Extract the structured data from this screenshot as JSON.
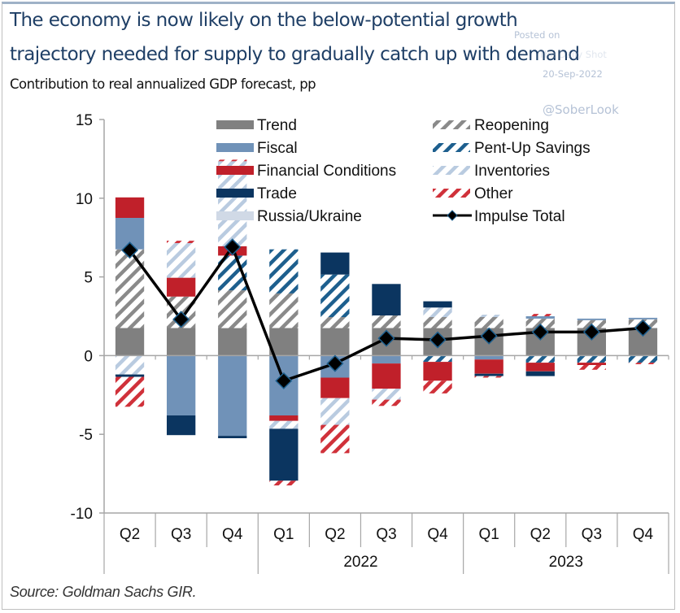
{
  "header": {
    "title_line1": "The economy is now likely on the below-potential growth",
    "title_line2": "trajectory needed for supply to gradually catch up with demand",
    "subtitle": "Contribution to real annualized GDP forecast, pp"
  },
  "watermark": {
    "posted_on": "Posted on",
    "site": "The Daily Shot",
    "date": "20-Sep-2022",
    "handle": "@SoberLook"
  },
  "footer": {
    "source": "Source: Goldman Sachs GIR."
  },
  "colors": {
    "Trend": "#808080",
    "Fiscal": "#7092b8",
    "Financial Conditions": "#c0202a",
    "Trade": "#0b3560",
    "Russia/Ukraine": "#d0d9e6",
    "Reopening": "#8a8a8a",
    "Pent-Up Savings": "#1d5f8e",
    "Inventories": "#b9cbe0",
    "Other": "#d0313a",
    "Impulse Total": "#000000"
  },
  "chart_data": {
    "type": "bar",
    "stacked": true,
    "title": "The economy is now likely on the below-potential growth trajectory needed for supply to gradually catch up with demand",
    "subtitle": "Contribution to real annualized GDP forecast, pp",
    "xlabel": "",
    "ylabel": "",
    "ylim": [
      -10,
      15
    ],
    "yticks": [
      -10,
      -5,
      0,
      5,
      10,
      15
    ],
    "grid": false,
    "legend_position": "top-right",
    "categories": [
      "Q2",
      "Q3",
      "Q4",
      "Q1",
      "Q2",
      "Q3",
      "Q4",
      "Q1",
      "Q2",
      "Q3",
      "Q4"
    ],
    "year_groups": [
      {
        "label": "",
        "span": 3
      },
      {
        "label": "2022",
        "span": 4
      },
      {
        "label": "2023",
        "span": 4
      }
    ],
    "legend": [
      {
        "name": "Trend",
        "style": "solid"
      },
      {
        "name": "Reopening",
        "style": "hatched"
      },
      {
        "name": "Fiscal",
        "style": "solid"
      },
      {
        "name": "Pent-Up Savings",
        "style": "hatched"
      },
      {
        "name": "Financial Conditions",
        "style": "solid"
      },
      {
        "name": "Inventories",
        "style": "hatched"
      },
      {
        "name": "Trade",
        "style": "solid"
      },
      {
        "name": "Other",
        "style": "hatched"
      },
      {
        "name": "Russia/Ukraine",
        "style": "solid"
      },
      {
        "name": "Impulse Total",
        "style": "line-diamond"
      }
    ],
    "series": [
      {
        "name": "Trend",
        "style": "solid",
        "values": [
          1.75,
          1.75,
          1.75,
          1.75,
          1.75,
          1.75,
          1.75,
          1.75,
          1.75,
          1.75,
          1.75
        ]
      },
      {
        "name": "Reopening",
        "style": "hatched",
        "values": [
          5.0,
          2.0,
          2.4,
          2.2,
          0.7,
          0.8,
          0.7,
          0.7,
          0.6,
          0.5,
          0.55
        ]
      },
      {
        "name": "Pent-Up Savings",
        "style": "hatched",
        "values": [
          0,
          0,
          2.2,
          2.8,
          2.7,
          0,
          -0.4,
          0,
          -0.45,
          -0.45,
          -0.45
        ]
      },
      {
        "name": "Fiscal",
        "style": "solid",
        "values": [
          2.0,
          -3.8,
          -5.1,
          -3.8,
          -1.4,
          -0.5,
          0,
          -0.25,
          0.15,
          0.1,
          0.1
        ]
      },
      {
        "name": "Financial Conditions",
        "style": "solid",
        "values": [
          1.3,
          1.2,
          0.6,
          -0.35,
          -1.3,
          -1.6,
          -1.2,
          -0.9,
          -0.55,
          -0.15,
          0
        ]
      },
      {
        "name": "Inventories",
        "style": "hatched",
        "values": [
          -1.2,
          2.2,
          5.4,
          -0.5,
          -1.7,
          -0.7,
          0.6,
          0.15,
          0,
          0,
          0
        ]
      },
      {
        "name": "Trade",
        "style": "solid",
        "values": [
          -0.15,
          -1.25,
          -0.15,
          -3.3,
          1.4,
          2.0,
          0.4,
          -0.15,
          -0.3,
          0,
          0
        ]
      },
      {
        "name": "Other",
        "style": "hatched",
        "values": [
          -1.9,
          0.15,
          0.1,
          -0.3,
          -1.8,
          -0.4,
          -0.8,
          -0.1,
          0.15,
          -0.3,
          -0.1
        ]
      },
      {
        "name": "Russia/Ukraine",
        "style": "solid",
        "values": [
          0,
          0,
          0,
          0,
          0,
          0,
          0,
          0,
          0,
          0,
          0
        ]
      }
    ],
    "line": {
      "name": "Impulse Total",
      "values": [
        6.7,
        2.3,
        6.9,
        -1.6,
        -0.5,
        1.1,
        1.0,
        1.25,
        1.5,
        1.5,
        1.75
      ]
    }
  }
}
